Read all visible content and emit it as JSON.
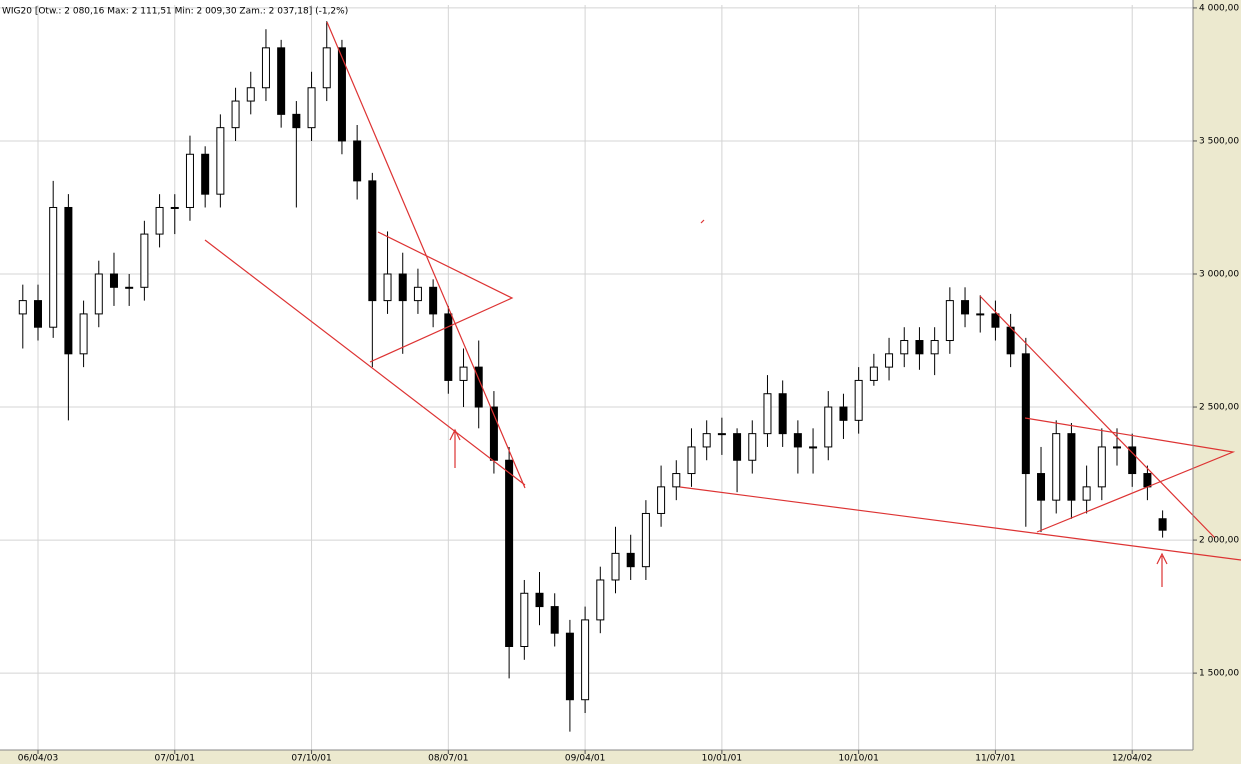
{
  "chart_data": {
    "type": "candlestick",
    "title": "WIG20 [Otw.: 2 080,16  Max: 2 111,51  Min: 2 009,30  Zam.: 2 037,18] (-1,2%)",
    "x": [
      0,
      1,
      2,
      3,
      4,
      5,
      6,
      7,
      8,
      9,
      10,
      11,
      12,
      13,
      14,
      15,
      16,
      17,
      18,
      19,
      20,
      21,
      22,
      23,
      24,
      25,
      26,
      27,
      28,
      29,
      30,
      31,
      32,
      33,
      34,
      35,
      36,
      37,
      38,
      39,
      40,
      41,
      42,
      43,
      44,
      45,
      46,
      47,
      48,
      49,
      50,
      51,
      52,
      53,
      54,
      55,
      56,
      57,
      58,
      59,
      60,
      61,
      62,
      63,
      64,
      65,
      66,
      67,
      68,
      69,
      70,
      71,
      72,
      73,
      74,
      75
    ],
    "open": [
      2850,
      2900,
      2800,
      3250,
      2700,
      2850,
      3000,
      2950,
      2950,
      3150,
      3250,
      3250,
      3450,
      3300,
      3550,
      3650,
      3700,
      3850,
      3600,
      3550,
      3700,
      3850,
      3500,
      3350,
      2900,
      3000,
      2900,
      2950,
      2850,
      2600,
      2650,
      2500,
      2300,
      1600,
      1800,
      1750,
      1650,
      1400,
      1700,
      1850,
      1950,
      1900,
      2100,
      2200,
      2250,
      2350,
      2400,
      2400,
      2300,
      2400,
      2550,
      2400,
      2350,
      2350,
      2500,
      2450,
      2600,
      2650,
      2700,
      2750,
      2700,
      2750,
      2900,
      2850,
      2850,
      2800,
      2700,
      2250,
      2150,
      2400,
      2150,
      2200,
      2350,
      2350,
      2250,
      2080.16
    ],
    "high": [
      2960,
      2960,
      3350,
      3300,
      2900,
      3050,
      3080,
      3000,
      3200,
      3300,
      3300,
      3520,
      3480,
      3600,
      3700,
      3760,
      3920,
      3880,
      3650,
      3760,
      3950,
      3880,
      3560,
      3380,
      3160,
      3080,
      3020,
      2980,
      2880,
      2720,
      2750,
      2560,
      2350,
      1850,
      1880,
      1800,
      1700,
      1750,
      1900,
      2050,
      2020,
      2150,
      2280,
      2300,
      2420,
      2450,
      2460,
      2420,
      2450,
      2620,
      2600,
      2450,
      2420,
      2560,
      2550,
      2650,
      2700,
      2760,
      2800,
      2800,
      2800,
      2950,
      2950,
      2920,
      2900,
      2850,
      2760,
      2350,
      2450,
      2440,
      2280,
      2420,
      2420,
      2400,
      2280,
      2111.51
    ],
    "low": [
      2720,
      2750,
      2760,
      2450,
      2650,
      2800,
      2880,
      2880,
      2900,
      3100,
      3150,
      3200,
      3250,
      3250,
      3500,
      3600,
      3650,
      3550,
      3250,
      3500,
      3650,
      3450,
      3280,
      2650,
      2850,
      2700,
      2850,
      2800,
      2550,
      2500,
      2420,
      2250,
      1480,
      1550,
      1680,
      1600,
      1280,
      1350,
      1650,
      1800,
      1850,
      1850,
      2050,
      2150,
      2200,
      2300,
      2320,
      2180,
      2250,
      2350,
      2350,
      2250,
      2250,
      2300,
      2380,
      2400,
      2580,
      2600,
      2650,
      2640,
      2620,
      2700,
      2800,
      2780,
      2750,
      2650,
      2050,
      2030,
      2100,
      2080,
      2100,
      2150,
      2280,
      2200,
      2150,
      2009.3
    ],
    "close": [
      2900,
      2800,
      3250,
      2700,
      2850,
      3000,
      2950,
      2950,
      3150,
      3250,
      3250,
      3450,
      3300,
      3550,
      3650,
      3700,
      3850,
      3600,
      3550,
      3700,
      3850,
      3500,
      3350,
      2900,
      3000,
      2900,
      2950,
      2850,
      2600,
      2650,
      2500,
      2300,
      1600,
      1800,
      1750,
      1650,
      1400,
      1700,
      1850,
      1950,
      1900,
      2100,
      2200,
      2250,
      2350,
      2400,
      2400,
      2300,
      2400,
      2550,
      2400,
      2350,
      2350,
      2500,
      2450,
      2600,
      2650,
      2700,
      2750,
      2700,
      2750,
      2900,
      2850,
      2850,
      2800,
      2700,
      2250,
      2150,
      2400,
      2150,
      2200,
      2350,
      2350,
      2250,
      2200,
      2037.18
    ],
    "xlim": [
      -1.5,
      77
    ],
    "xticks": [
      {
        "value": 1,
        "label": "06/04/03"
      },
      {
        "value": 10,
        "label": "07/01/01"
      },
      {
        "value": 19,
        "label": "07/10/01"
      },
      {
        "value": 28,
        "label": "08/07/01"
      },
      {
        "value": 37,
        "label": "09/04/01"
      },
      {
        "value": 46,
        "label": "10/01/01"
      },
      {
        "value": 55,
        "label": "10/10/01"
      },
      {
        "value": 64,
        "label": "11/07/01"
      },
      {
        "value": 73,
        "label": "12/04/02"
      }
    ],
    "ylim": [
      1211,
      4011
    ],
    "yticks": [
      {
        "value": 4000,
        "label": "4 000,00"
      },
      {
        "value": 3500,
        "label": "3 500,00"
      },
      {
        "value": 3000,
        "label": "3 000,00"
      },
      {
        "value": 2500,
        "label": "2 500,00"
      },
      {
        "value": 2000,
        "label": "2 000,00"
      },
      {
        "value": 1500,
        "label": "1 500,00"
      }
    ],
    "grid": true,
    "up_color": "#ffffff",
    "down_color": "#000000"
  }
}
